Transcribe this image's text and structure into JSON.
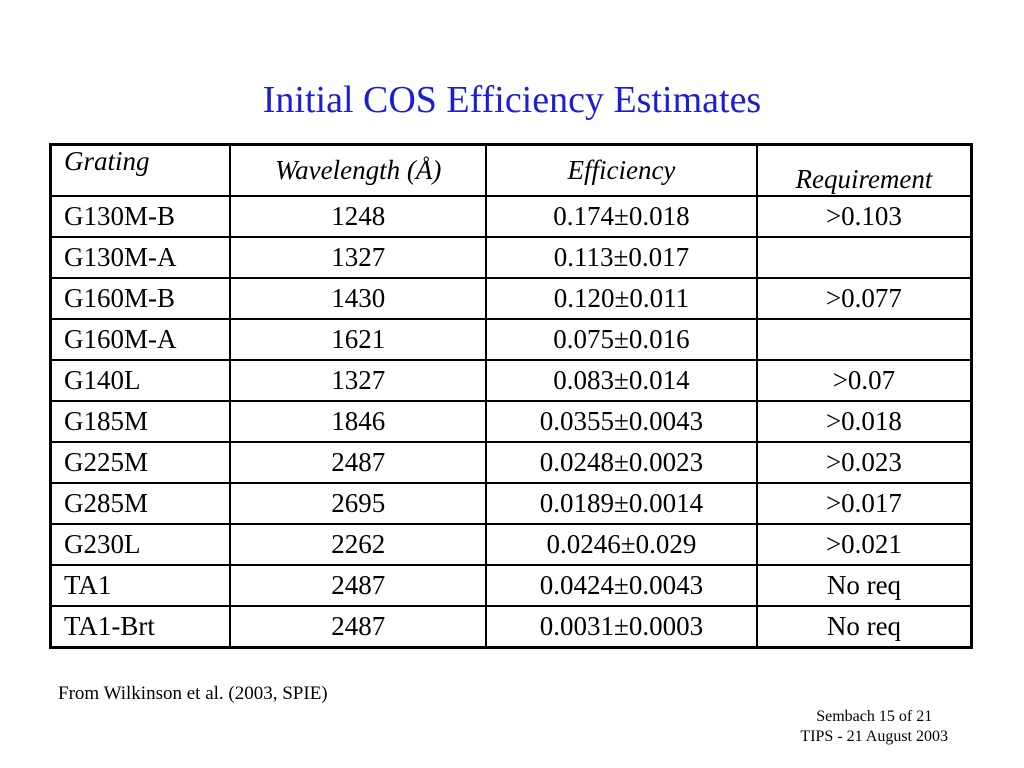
{
  "slide": {
    "title": "Initial COS Efficiency Estimates",
    "source_note": "From Wilkinson et al. (2003, SPIE)",
    "footer_line1": "Sembach 15 of 21",
    "footer_line2": "TIPS - 21 August 2003"
  },
  "table": {
    "headers": [
      "Grating",
      "Wavelength (Å)",
      "Efficiency",
      "Requirement"
    ],
    "rows": [
      [
        "G130M-B",
        "1248",
        "0.174±0.018",
        ">0.103"
      ],
      [
        "G130M-A",
        "1327",
        "0.113±0.017",
        ""
      ],
      [
        "G160M-B",
        "1430",
        "0.120±0.011",
        ">0.077"
      ],
      [
        "G160M-A",
        "1621",
        "0.075±0.016",
        ""
      ],
      [
        "G140L",
        "1327",
        "0.083±0.014",
        ">0.07"
      ],
      [
        "G185M",
        "1846",
        "0.0355±0.0043",
        ">0.018"
      ],
      [
        "G225M",
        "2487",
        "0.0248±0.0023",
        ">0.023"
      ],
      [
        "G285M",
        "2695",
        "0.0189±0.0014",
        ">0.017"
      ],
      [
        "G230L",
        "2262",
        "0.0246±0.029",
        ">0.021"
      ],
      [
        "TA1",
        "2487",
        "0.0424±0.0043",
        "No req"
      ],
      [
        "TA1-Brt",
        "2487",
        "0.0031±0.0003",
        "No req"
      ]
    ]
  },
  "colors": {
    "title": "#1d1dd6",
    "text": "#000000",
    "background": "#ffffff"
  }
}
